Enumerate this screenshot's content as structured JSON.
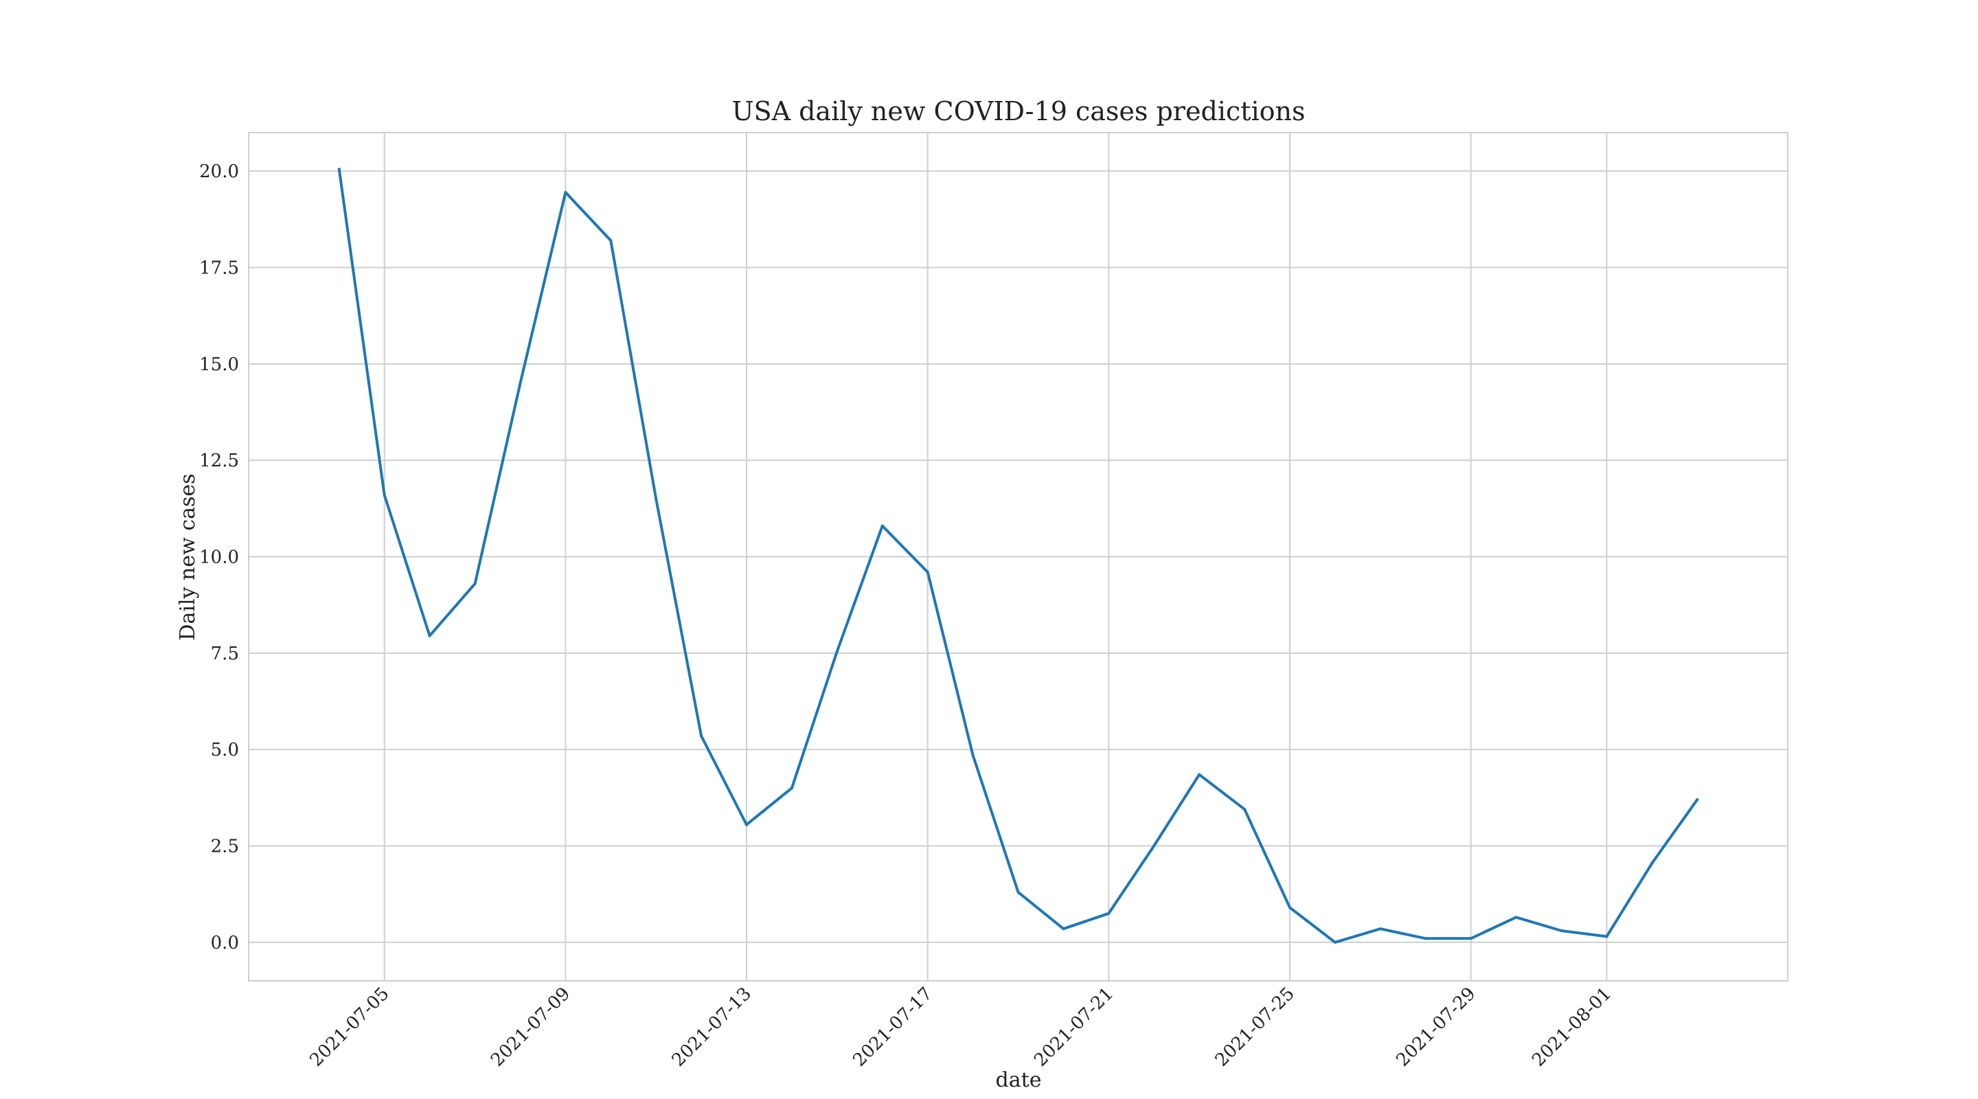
{
  "chart_data": {
    "type": "line",
    "title": "USA daily new COVID-19 cases predictions",
    "xlabel": "date",
    "ylabel": "Daily new cases",
    "x_ticks": [
      "2021-07-05",
      "2021-07-09",
      "2021-07-13",
      "2021-07-17",
      "2021-07-21",
      "2021-07-25",
      "2021-07-29",
      "2021-08-01"
    ],
    "y_ticks": [
      "0.0",
      "2.5",
      "5.0",
      "7.5",
      "10.0",
      "12.5",
      "15.0",
      "17.5",
      "20.0"
    ],
    "xlim": [
      "2021-07-02",
      "2021-08-05"
    ],
    "ylim": [
      -1.0,
      21.0
    ],
    "grid": true,
    "series": [
      {
        "color": "#1f77b4",
        "x": [
          "2021-07-04",
          "2021-07-05",
          "2021-07-06",
          "2021-07-07",
          "2021-07-08",
          "2021-07-09",
          "2021-07-10",
          "2021-07-11",
          "2021-07-12",
          "2021-07-13",
          "2021-07-14",
          "2021-07-15",
          "2021-07-16",
          "2021-07-17",
          "2021-07-18",
          "2021-07-19",
          "2021-07-20",
          "2021-07-21",
          "2021-07-22",
          "2021-07-23",
          "2021-07-24",
          "2021-07-25",
          "2021-07-26",
          "2021-07-27",
          "2021-07-28",
          "2021-07-29",
          "2021-07-30",
          "2021-07-31",
          "2021-08-01",
          "2021-08-02",
          "2021-08-03"
        ],
        "values": [
          20.05,
          11.6,
          7.95,
          9.3,
          14.5,
          19.45,
          18.2,
          11.5,
          5.35,
          3.05,
          4.0,
          7.55,
          10.8,
          9.6,
          4.85,
          1.3,
          0.35,
          0.75,
          2.5,
          4.35,
          3.45,
          0.9,
          0.0,
          0.35,
          0.1,
          0.1,
          0.65,
          0.3,
          0.15,
          2.05,
          3.7
        ]
      }
    ]
  }
}
